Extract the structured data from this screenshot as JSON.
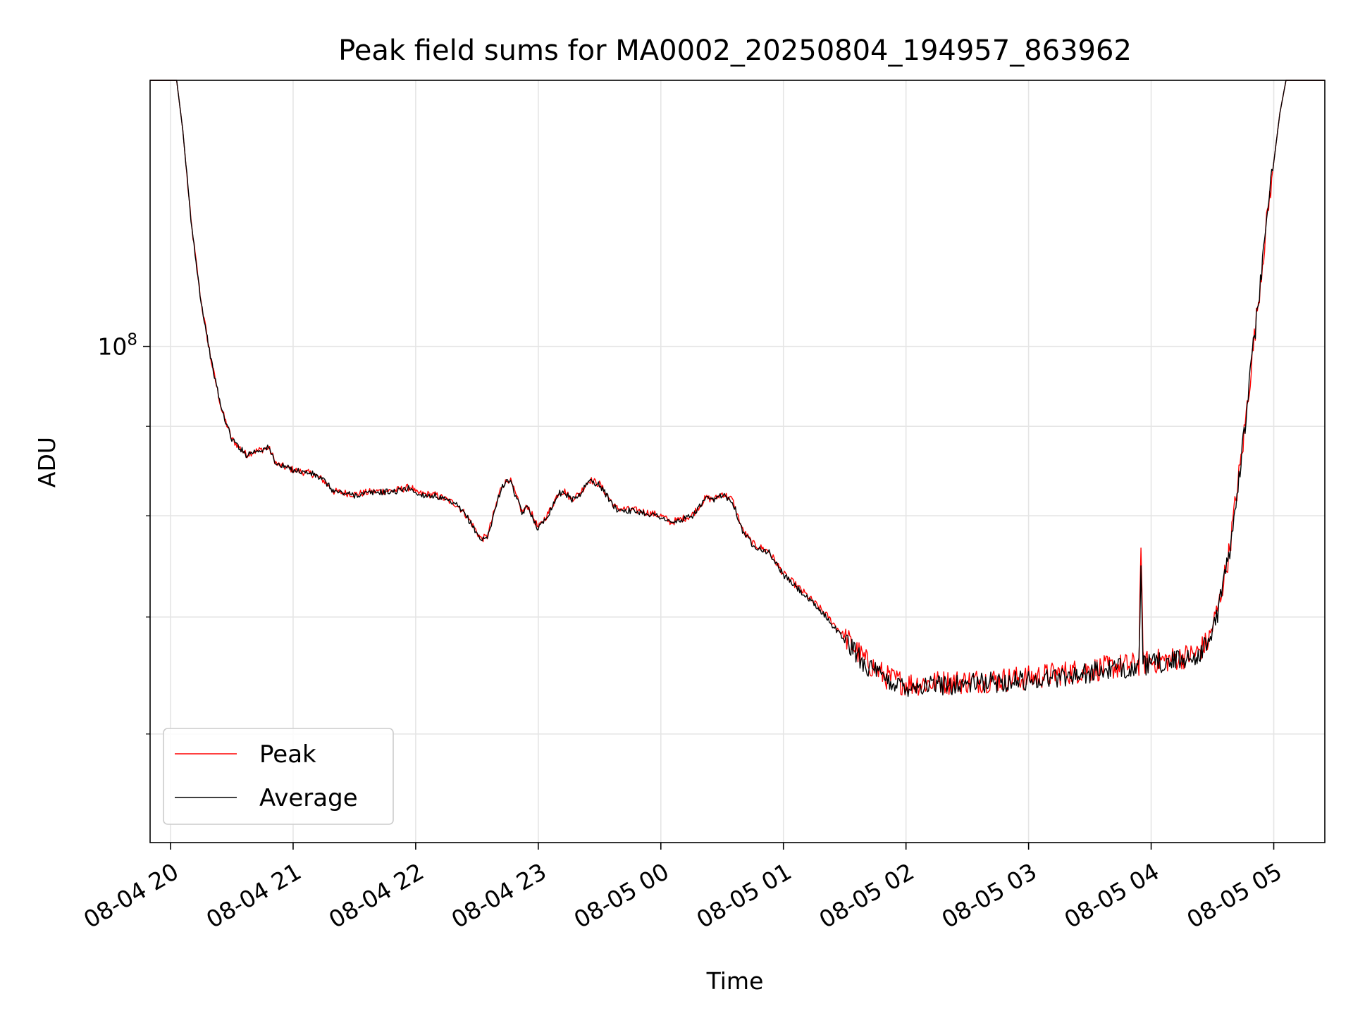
{
  "chart_data": {
    "type": "line",
    "title": "Peak field sums for MA0002_20250804_194957_863962",
    "xlabel": "Time",
    "ylabel": "ADU",
    "yscale": "log",
    "ylim": [
      52000000,
      142000000
    ],
    "y_major_tick_labels": [
      {
        "value": 100000000,
        "base": "10",
        "exp": "8"
      }
    ],
    "y_minor_ticks": [
      60000000,
      70000000,
      80000000,
      90000000,
      200000000
    ],
    "xlim": [
      "2025-08-04 19:50",
      "2025-08-05 05:25"
    ],
    "x_ticks": [
      {
        "t": "2025-08-04 20:00",
        "label": "08-04 20"
      },
      {
        "t": "2025-08-04 21:00",
        "label": "08-04 21"
      },
      {
        "t": "2025-08-04 22:00",
        "label": "08-04 22"
      },
      {
        "t": "2025-08-04 23:00",
        "label": "08-04 23"
      },
      {
        "t": "2025-08-05 00:00",
        "label": "08-05 00"
      },
      {
        "t": "2025-08-05 01:00",
        "label": "08-05 01"
      },
      {
        "t": "2025-08-05 02:00",
        "label": "08-05 02"
      },
      {
        "t": "2025-08-05 03:00",
        "label": "08-05 03"
      },
      {
        "t": "2025-08-05 04:00",
        "label": "08-05 04"
      },
      {
        "t": "2025-08-05 05:00",
        "label": "08-05 05"
      }
    ],
    "grid": true,
    "legend_position": "lower-left",
    "series": [
      {
        "name": "Peak",
        "color": "#ff0000",
        "noise": 0.006,
        "points": [
          [
            "2025-08-04 19:50",
            142000000
          ],
          [
            "2025-08-04 20:03",
            142000000
          ],
          [
            "2025-08-04 20:06",
            133000000
          ],
          [
            "2025-08-04 20:10",
            118000000
          ],
          [
            "2025-08-04 20:15",
            106000000
          ],
          [
            "2025-08-04 20:20",
            98000000
          ],
          [
            "2025-08-04 20:25",
            92000000
          ],
          [
            "2025-08-04 20:30",
            88500000
          ],
          [
            "2025-08-04 20:37",
            86700000
          ],
          [
            "2025-08-04 20:40",
            87000000
          ],
          [
            "2025-08-04 20:48",
            87500000
          ],
          [
            "2025-08-04 20:52",
            85600000
          ],
          [
            "2025-08-04 21:00",
            85000000
          ],
          [
            "2025-08-04 21:10",
            84500000
          ],
          [
            "2025-08-04 21:15",
            83800000
          ],
          [
            "2025-08-04 21:20",
            82600000
          ],
          [
            "2025-08-04 21:30",
            82300000
          ],
          [
            "2025-08-04 21:40",
            82600000
          ],
          [
            "2025-08-04 21:50",
            82700000
          ],
          [
            "2025-08-04 21:58",
            83100000
          ],
          [
            "2025-08-04 22:00",
            82400000
          ],
          [
            "2025-08-04 22:10",
            82200000
          ],
          [
            "2025-08-04 22:20",
            81200000
          ],
          [
            "2025-08-04 22:25",
            80000000
          ],
          [
            "2025-08-04 22:32",
            77600000
          ],
          [
            "2025-08-04 22:35",
            77800000
          ],
          [
            "2025-08-04 22:42",
            83200000
          ],
          [
            "2025-08-04 22:46",
            84000000
          ],
          [
            "2025-08-04 22:52",
            80400000
          ],
          [
            "2025-08-04 22:55",
            81000000
          ],
          [
            "2025-08-04 23:00",
            78700000
          ],
          [
            "2025-08-04 23:05",
            80300000
          ],
          [
            "2025-08-04 23:10",
            82500000
          ],
          [
            "2025-08-04 23:13",
            82600000
          ],
          [
            "2025-08-04 23:16",
            81800000
          ],
          [
            "2025-08-04 23:20",
            82300000
          ],
          [
            "2025-08-04 23:25",
            83900000
          ],
          [
            "2025-08-04 23:30",
            83400000
          ],
          [
            "2025-08-04 23:38",
            80800000
          ],
          [
            "2025-08-04 23:50",
            80500000
          ],
          [
            "2025-08-05 00:00",
            80000000
          ],
          [
            "2025-08-05 00:05",
            79300000
          ],
          [
            "2025-08-05 00:15",
            80000000
          ],
          [
            "2025-08-05 00:22",
            81900000
          ],
          [
            "2025-08-05 00:26",
            81700000
          ],
          [
            "2025-08-05 00:30",
            82400000
          ],
          [
            "2025-08-05 00:35",
            81700000
          ],
          [
            "2025-08-05 00:40",
            78500000
          ],
          [
            "2025-08-05 00:45",
            77100000
          ],
          [
            "2025-08-05 00:53",
            76300000
          ],
          [
            "2025-08-05 01:00",
            74100000
          ],
          [
            "2025-08-05 01:10",
            72300000
          ],
          [
            "2025-08-05 01:20",
            70400000
          ],
          [
            "2025-08-05 01:30",
            68200000
          ],
          [
            "2025-08-05 01:40",
            66100000
          ],
          [
            "2025-08-05 01:50",
            64700000
          ],
          [
            "2025-08-05 02:00",
            64100000
          ],
          [
            "2025-08-05 02:30",
            64300000
          ],
          [
            "2025-08-05 03:00",
            64600000
          ],
          [
            "2025-08-05 03:20",
            65100000
          ],
          [
            "2025-08-05 03:40",
            65500000
          ],
          [
            "2025-08-05 03:54",
            65800000
          ],
          [
            "2025-08-05 03:55",
            77400000
          ],
          [
            "2025-08-05 03:56",
            65900000
          ],
          [
            "2025-08-05 04:10",
            66200000
          ],
          [
            "2025-08-05 04:22",
            66700000
          ],
          [
            "2025-08-05 04:28",
            67800000
          ],
          [
            "2025-08-05 04:33",
            71000000
          ],
          [
            "2025-08-05 04:38",
            76000000
          ],
          [
            "2025-08-05 04:45",
            88000000
          ],
          [
            "2025-08-05 04:52",
            105000000
          ],
          [
            "2025-08-05 04:58",
            122000000
          ],
          [
            "2025-08-05 05:03",
            136000000
          ],
          [
            "2025-08-05 05:06",
            142000000
          ],
          [
            "2025-08-05 05:25",
            142000000
          ]
        ]
      },
      {
        "name": "Average",
        "color": "#000000",
        "noise": 0.005,
        "points": [
          [
            "2025-08-04 19:50",
            142000000
          ],
          [
            "2025-08-04 20:03",
            142000000
          ],
          [
            "2025-08-04 20:06",
            133000000
          ],
          [
            "2025-08-04 20:10",
            118000000
          ],
          [
            "2025-08-04 20:15",
            106000000
          ],
          [
            "2025-08-04 20:20",
            98000000
          ],
          [
            "2025-08-04 20:25",
            92000000
          ],
          [
            "2025-08-04 20:30",
            88500000
          ],
          [
            "2025-08-04 20:37",
            86700000
          ],
          [
            "2025-08-04 20:40",
            87000000
          ],
          [
            "2025-08-04 20:48",
            87500000
          ],
          [
            "2025-08-04 20:52",
            85600000
          ],
          [
            "2025-08-04 21:00",
            85000000
          ],
          [
            "2025-08-04 21:10",
            84500000
          ],
          [
            "2025-08-04 21:15",
            83800000
          ],
          [
            "2025-08-04 21:20",
            82600000
          ],
          [
            "2025-08-04 21:30",
            82200000
          ],
          [
            "2025-08-04 21:40",
            82500000
          ],
          [
            "2025-08-04 21:50",
            82600000
          ],
          [
            "2025-08-04 21:58",
            83000000
          ],
          [
            "2025-08-04 22:00",
            82300000
          ],
          [
            "2025-08-04 22:10",
            82100000
          ],
          [
            "2025-08-04 22:20",
            81100000
          ],
          [
            "2025-08-04 22:25",
            79900000
          ],
          [
            "2025-08-04 22:32",
            77500000
          ],
          [
            "2025-08-04 22:35",
            77700000
          ],
          [
            "2025-08-04 22:42",
            83100000
          ],
          [
            "2025-08-04 22:46",
            83900000
          ],
          [
            "2025-08-04 22:52",
            80300000
          ],
          [
            "2025-08-04 22:55",
            80900000
          ],
          [
            "2025-08-04 23:00",
            78600000
          ],
          [
            "2025-08-04 23:05",
            80200000
          ],
          [
            "2025-08-04 23:10",
            82400000
          ],
          [
            "2025-08-04 23:13",
            82500000
          ],
          [
            "2025-08-04 23:16",
            81700000
          ],
          [
            "2025-08-04 23:20",
            82200000
          ],
          [
            "2025-08-04 23:25",
            83800000
          ],
          [
            "2025-08-04 23:30",
            83300000
          ],
          [
            "2025-08-04 23:38",
            80700000
          ],
          [
            "2025-08-04 23:50",
            80400000
          ],
          [
            "2025-08-05 00:00",
            79900000
          ],
          [
            "2025-08-05 00:05",
            79200000
          ],
          [
            "2025-08-05 00:15",
            79900000
          ],
          [
            "2025-08-05 00:22",
            81800000
          ],
          [
            "2025-08-05 00:26",
            81600000
          ],
          [
            "2025-08-05 00:30",
            82300000
          ],
          [
            "2025-08-05 00:35",
            81600000
          ],
          [
            "2025-08-05 00:40",
            78400000
          ],
          [
            "2025-08-05 00:45",
            77000000
          ],
          [
            "2025-08-05 00:53",
            76200000
          ],
          [
            "2025-08-05 01:00",
            74000000
          ],
          [
            "2025-08-05 01:10",
            72100000
          ],
          [
            "2025-08-05 01:20",
            70200000
          ],
          [
            "2025-08-05 01:30",
            67900000
          ],
          [
            "2025-08-05 01:40",
            65800000
          ],
          [
            "2025-08-05 01:50",
            64400000
          ],
          [
            "2025-08-05 02:00",
            63900000
          ],
          [
            "2025-08-05 02:30",
            64100000
          ],
          [
            "2025-08-05 03:00",
            64400000
          ],
          [
            "2025-08-05 03:20",
            64800000
          ],
          [
            "2025-08-05 03:40",
            65300000
          ],
          [
            "2025-08-05 03:54",
            65600000
          ],
          [
            "2025-08-05 03:55",
            74000000
          ],
          [
            "2025-08-05 03:56",
            65700000
          ],
          [
            "2025-08-05 04:10",
            66000000
          ],
          [
            "2025-08-05 04:22",
            66500000
          ],
          [
            "2025-08-05 04:28",
            67600000
          ],
          [
            "2025-08-05 04:33",
            70800000
          ],
          [
            "2025-08-05 04:38",
            75800000
          ],
          [
            "2025-08-05 04:45",
            88000000
          ],
          [
            "2025-08-05 04:52",
            105000000
          ],
          [
            "2025-08-05 04:58",
            122000000
          ],
          [
            "2025-08-05 05:03",
            136000000
          ],
          [
            "2025-08-05 05:06",
            142000000
          ],
          [
            "2025-08-05 05:25",
            142000000
          ]
        ]
      }
    ]
  }
}
